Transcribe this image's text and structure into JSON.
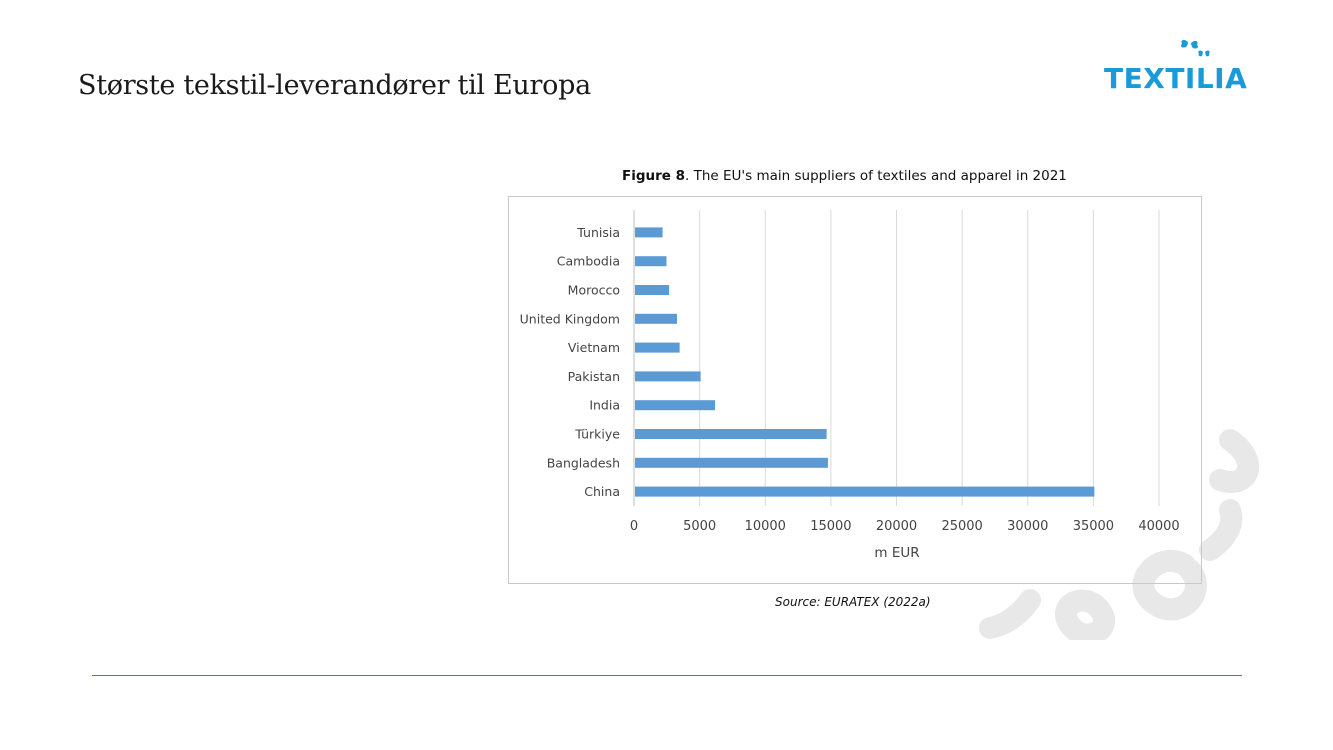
{
  "slide": {
    "title": "Største tekstil-leverandører til Europa"
  },
  "logo": {
    "text": "TEXTILIA",
    "color": "#1a9ad6"
  },
  "figure": {
    "caption_bold": "Figure 8",
    "caption_rest": ". The EU's main suppliers of textiles and apparel in 2021",
    "source": "Source: EURATEX (2022a)"
  },
  "chart_data": {
    "type": "bar",
    "orientation": "horizontal",
    "categories": [
      "Tunisia",
      "Cambodia",
      "Morocco",
      "United Kingdom",
      "Vietnam",
      "Pakistan",
      "India",
      "Türkiye",
      "Bangladesh",
      "China"
    ],
    "values": [
      2100,
      2400,
      2600,
      3200,
      3400,
      5000,
      6100,
      14600,
      14700,
      35000
    ],
    "xlabel": "m EUR",
    "xlim": [
      0,
      40000
    ],
    "xticks": [
      0,
      5000,
      10000,
      15000,
      20000,
      25000,
      30000,
      35000,
      40000
    ],
    "grid": true,
    "bar_color": "#5b9bd5"
  }
}
